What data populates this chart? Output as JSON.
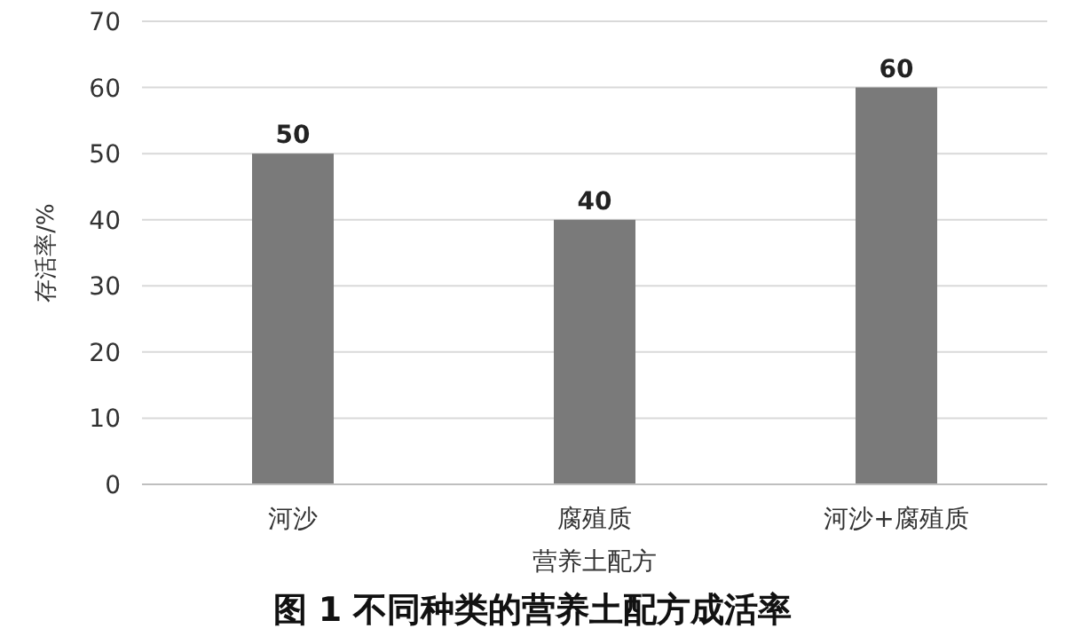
{
  "chart_data": {
    "type": "bar",
    "title": "图 1  不同种类的营养土配方成活率",
    "xlabel": "营养土配方",
    "ylabel": "存活率/%",
    "categories": [
      "河沙",
      "腐殖质",
      "河沙+腐殖质"
    ],
    "values": [
      50,
      40,
      60
    ],
    "color": "#7a7a7a",
    "ylim": [
      0,
      70
    ],
    "yticks": [
      0,
      10,
      20,
      30,
      40,
      50,
      60,
      70
    ],
    "grid": "y",
    "data_labels": true
  }
}
